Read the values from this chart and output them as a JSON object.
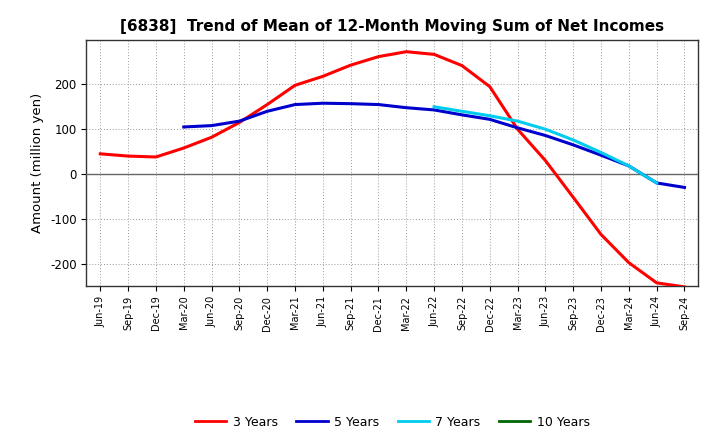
{
  "title": "[6838]  Trend of Mean of 12-Month Moving Sum of Net Incomes",
  "ylabel": "Amount (million yen)",
  "background_color": "#ffffff",
  "plot_bg_color": "#ffffff",
  "grid_color": "#999999",
  "ylim": [
    -250,
    300
  ],
  "yticks": [
    -200,
    -100,
    0,
    100,
    200
  ],
  "x_labels": [
    "Jun-19",
    "Sep-19",
    "Dec-19",
    "Mar-20",
    "Jun-20",
    "Sep-20",
    "Dec-20",
    "Mar-21",
    "Jun-21",
    "Sep-21",
    "Dec-21",
    "Mar-22",
    "Jun-22",
    "Sep-22",
    "Dec-22",
    "Mar-23",
    "Jun-23",
    "Sep-23",
    "Dec-23",
    "Mar-24",
    "Jun-24",
    "Sep-24"
  ],
  "series": {
    "3_years": {
      "color": "#ff0000",
      "label": "3 Years",
      "linewidth": 2.2,
      "data": [
        45,
        40,
        38,
        58,
        82,
        115,
        155,
        198,
        218,
        243,
        262,
        273,
        267,
        242,
        195,
        100,
        30,
        -52,
        -135,
        -198,
        -243,
        -252
      ]
    },
    "5_years": {
      "color": "#0000cc",
      "label": "5 Years",
      "linewidth": 2.2,
      "data": [
        null,
        null,
        null,
        105,
        108,
        118,
        140,
        155,
        158,
        157,
        155,
        148,
        143,
        132,
        122,
        103,
        86,
        65,
        42,
        18,
        -20,
        -30
      ]
    },
    "7_years": {
      "color": "#00ccee",
      "label": "7 Years",
      "linewidth": 2.2,
      "data": [
        null,
        null,
        null,
        null,
        null,
        null,
        null,
        null,
        null,
        null,
        null,
        null,
        150,
        140,
        130,
        118,
        100,
        76,
        48,
        18,
        -20,
        null
      ]
    },
    "10_years": {
      "color": "#006600",
      "label": "10 Years",
      "linewidth": 2.2,
      "data": [
        null,
        null,
        null,
        null,
        null,
        null,
        null,
        null,
        null,
        null,
        null,
        null,
        null,
        null,
        null,
        null,
        null,
        null,
        null,
        null,
        null,
        null
      ]
    }
  }
}
